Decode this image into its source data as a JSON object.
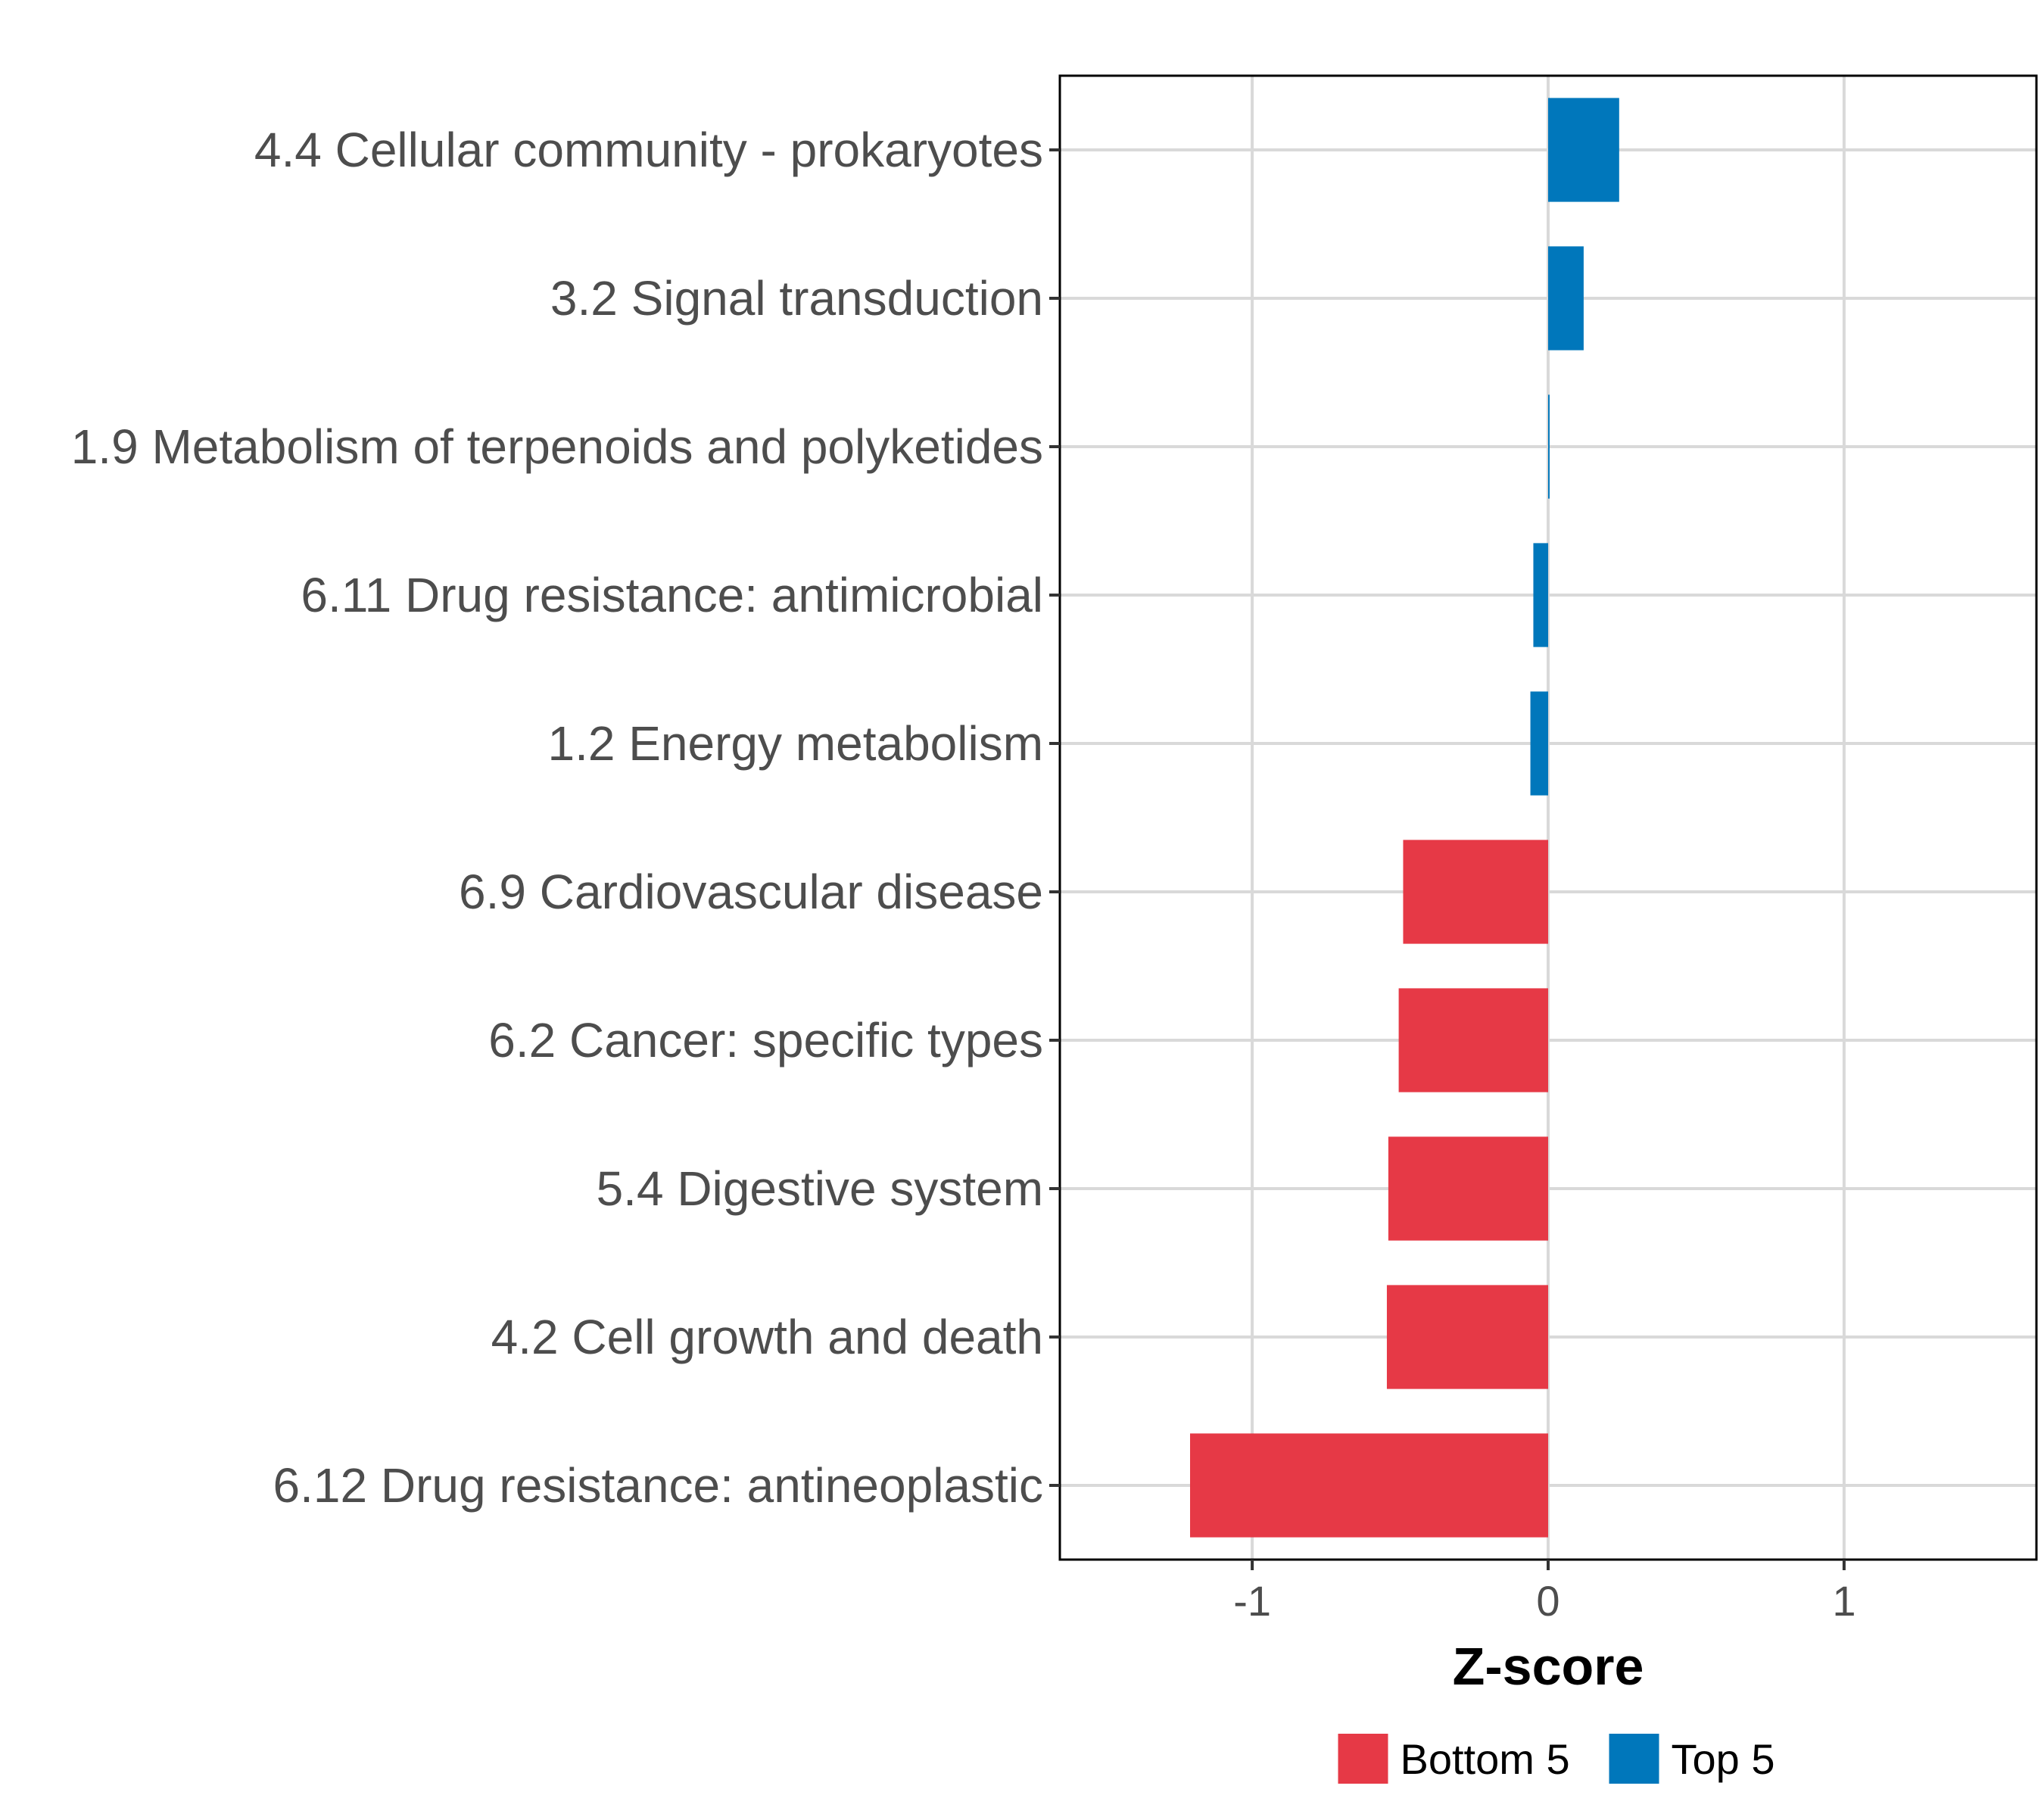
{
  "chart_data": {
    "type": "bar",
    "orientation": "horizontal",
    "title": "",
    "xlabel": "Z-score",
    "ylabel": "",
    "xlim": [
      -1.65,
      1.65
    ],
    "xticks": [
      -1,
      0,
      1
    ],
    "xtick_labels": [
      "-1",
      "0",
      "1"
    ],
    "grid": true,
    "legend_position": "bottom",
    "categories": [
      "4.4 Cellular community - prokaryotes",
      "3.2 Signal transduction",
      "1.9 Metabolism of terpenoids and polyketides",
      "6.11 Drug resistance: antimicrobial",
      "1.2 Energy metabolism",
      "6.9 Cardiovascular disease",
      "6.2 Cancer: specific types",
      "5.4 Digestive system",
      "4.2 Cell growth and death",
      "6.12 Drug resistance: antineoplastic"
    ],
    "values": [
      0.24,
      0.12,
      0.005,
      -0.05,
      -0.06,
      -0.49,
      -0.505,
      -0.54,
      -0.545,
      -1.21
    ],
    "groups": [
      "Top 5",
      "Top 5",
      "Top 5",
      "Top 5",
      "Top 5",
      "Bottom 5",
      "Bottom 5",
      "Bottom 5",
      "Bottom 5",
      "Bottom 5"
    ],
    "legend": [
      {
        "name": "Bottom 5",
        "color": "#e63946"
      },
      {
        "name": "Top 5",
        "color": "#0077bb"
      }
    ]
  }
}
